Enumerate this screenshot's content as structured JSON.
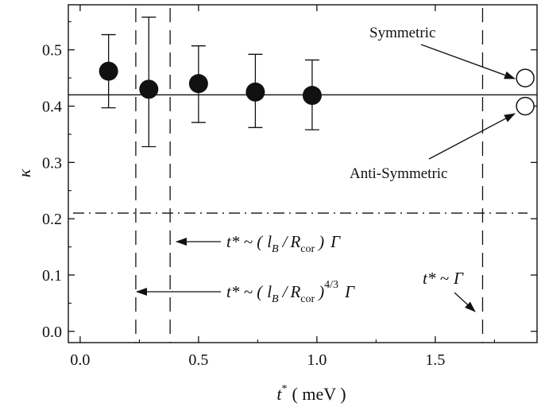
{
  "chart_data": {
    "type": "scatter",
    "title": "",
    "xlabel": {
      "symbol": "t",
      "sup": "*",
      "unit": "( meV )"
    },
    "ylabel": "κ",
    "xlim": [
      -0.05,
      1.93
    ],
    "ylim": [
      -0.02,
      0.58
    ],
    "xticks": [
      0.0,
      0.5,
      1.0,
      1.5
    ],
    "xtick_labels": [
      "0.0",
      "0.5",
      "1.0",
      "1.5"
    ],
    "yticks": [
      0.0,
      0.1,
      0.2,
      0.3,
      0.4,
      0.5
    ],
    "ytick_labels": [
      "0.0",
      "0.1",
      "0.2",
      "0.3",
      "0.4",
      "0.5"
    ],
    "grid": false,
    "series": [
      {
        "marker": "filled-circle",
        "x": [
          0.12,
          0.29,
          0.5,
          0.74,
          0.98
        ],
        "y": [
          0.462,
          0.43,
          0.44,
          0.425,
          0.419
        ],
        "yerr_low": [
          0.397,
          0.328,
          0.371,
          0.362,
          0.358
        ],
        "yerr_high": [
          0.527,
          0.558,
          0.507,
          0.492,
          0.482
        ]
      }
    ],
    "reference_points": [
      {
        "label": "Symmetric",
        "x": 1.88,
        "y": 0.45,
        "marker": "open-circle"
      },
      {
        "label": "Anti-Symmetric",
        "x": 1.88,
        "y": 0.4,
        "marker": "open-circle"
      }
    ],
    "hlines": [
      {
        "y": 0.42,
        "style": "solid"
      },
      {
        "y": 0.21,
        "style": "dash-dot"
      }
    ],
    "vlines": [
      {
        "x": 0.235,
        "style": "dashed"
      },
      {
        "x": 0.38,
        "style": "dashed"
      },
      {
        "x": 1.7,
        "style": "dashed"
      }
    ],
    "annotations": {
      "symmetric": "Symmetric",
      "antisymmetric": "Anti-Symmetric",
      "formula1": {
        "lhs": "t* ~ (",
        "lb": "l",
        "lb_sub": "B",
        "slash": "/",
        "r": "R",
        "r_sub": "cor",
        "rhs": ")",
        "gamma": "Γ"
      },
      "formula2": {
        "lhs": "t* ~ (",
        "lb": "l",
        "lb_sub": "B",
        "slash": "/",
        "r": "R",
        "r_sub": "cor",
        "rhs": ")",
        "power": "4/3",
        "gamma": "Γ"
      },
      "formula3": {
        "text": "t* ~",
        "gamma": "Γ"
      }
    }
  }
}
